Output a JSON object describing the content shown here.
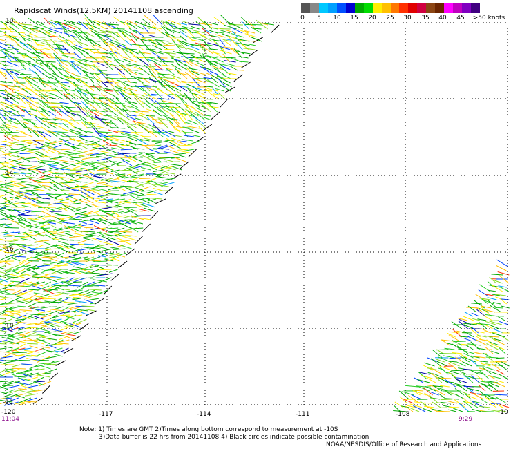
{
  "title": "Rapidscat Winds(12.5KM) 20141108 ascending",
  "legend": {
    "colors": [
      "#555555",
      "#888888",
      "#00c8ff",
      "#00a0ff",
      "#0050ff",
      "#0000d0",
      "#00aa00",
      "#00dd00",
      "#ffee00",
      "#ffc000",
      "#ff7800",
      "#ff3000",
      "#e00000",
      "#d00040",
      "#8b4513",
      "#6b2500",
      "#ff00ff",
      "#c000c0",
      "#8000c0",
      "#400080"
    ],
    "labels": [
      "0",
      "5",
      "10",
      "15",
      "20",
      "25",
      "30",
      "35",
      "40",
      "45",
      ">50 knots"
    ],
    "label_values": [
      0,
      5,
      10,
      15,
      20,
      25,
      30,
      35,
      40,
      45,
      50
    ]
  },
  "axes": {
    "lat_labels": [
      "10",
      "12",
      "14",
      "16",
      "18",
      "-20"
    ],
    "lon_labels": [
      "-120",
      "-117",
      "-114",
      "-111",
      "-108",
      "-10"
    ]
  },
  "times": {
    "left": "11:04",
    "right": "9:29"
  },
  "notes": {
    "line1": "Note: 1) Times are GMT 2)Times along bottom correspond to measurement at -10S",
    "line2": "3)Data buffer is 22 hrs from 20141108 4) Black circles indicate possible contamination",
    "line3": "NOAA/NESDIS/Office of Research and Applications"
  }
}
